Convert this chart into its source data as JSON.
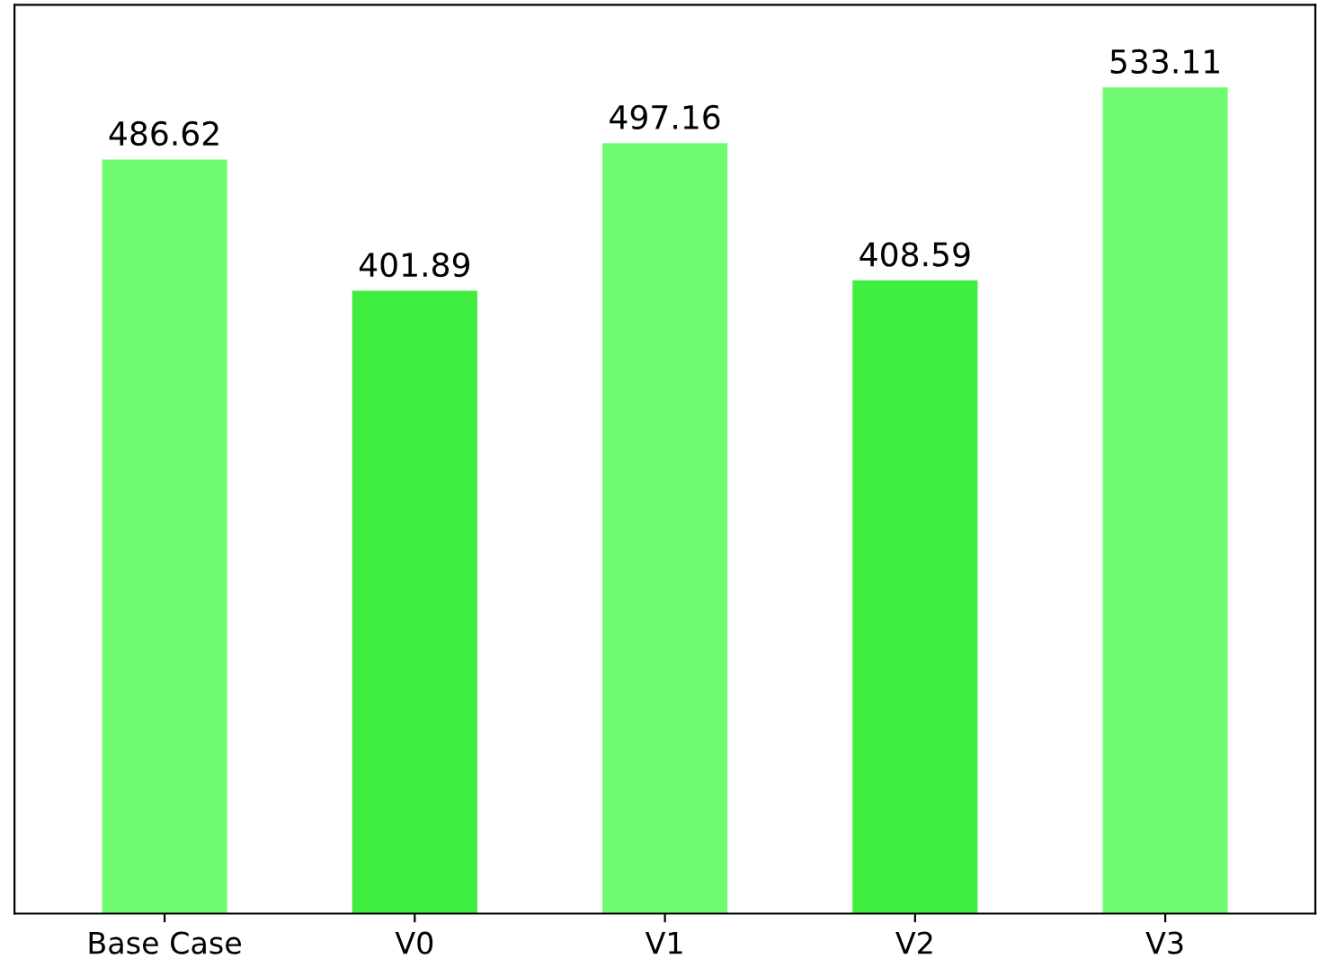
{
  "chart_data": {
    "type": "bar",
    "categories": [
      "Base Case",
      "V0",
      "V1",
      "V2",
      "V3"
    ],
    "values": [
      486.62,
      401.89,
      497.16,
      408.59,
      533.11
    ],
    "colors": [
      "#70fc70",
      "#40ee40",
      "#70fc70",
      "#40ee40",
      "#70fc70"
    ],
    "data_labels": true,
    "tick_labels": "x",
    "grid": false,
    "legend": false
  }
}
